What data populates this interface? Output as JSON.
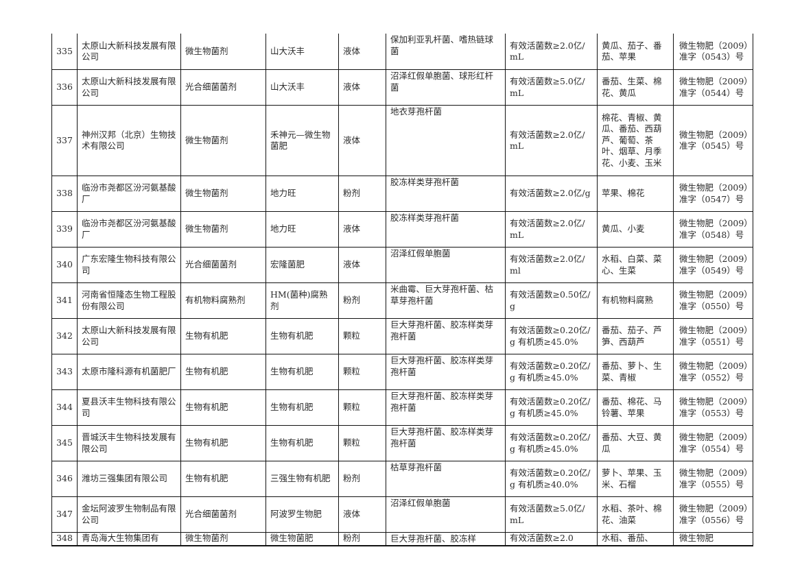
{
  "rows": [
    {
      "no": "335",
      "company": "太原山大新科技发展有限公司",
      "type": "微生物菌剂",
      "product": "山大沃丰",
      "form": "液体",
      "strain": "保加利亚乳杆菌、嗜热链球菌",
      "content": "有效活菌数≥2.0亿/mL",
      "crops": "黄瓜、茄子、番茄、苹果",
      "cert": "微生物肥（2009）准字（0543）号"
    },
    {
      "no": "336",
      "company": "太原山大新科技发展有限公司",
      "type": "光合细菌菌剂",
      "product": "山大沃丰",
      "form": "液体",
      "strain": "沼泽红假单胞菌、球形红杆菌",
      "content": "有效活菌数≥5.0亿/mL",
      "crops": "番茄、生菜、棉花、黄瓜",
      "cert": "微生物肥（2009）准字（0544）号"
    },
    {
      "no": "337",
      "company": "神州汉邦（北京）生物技术有限公司",
      "type": "微生物菌剂",
      "product": "禾神元—微生物菌肥",
      "form": "液体",
      "strain": "地衣芽孢杆菌",
      "content": "有效活菌数≥2.0亿/mL",
      "crops": "棉花、青椒、黄瓜、番茄、西葫芦、葡萄、茶叶、烟草、月季花、小麦、玉米",
      "cert": "微生物肥（2009）准字（0545）号"
    },
    {
      "no": "338",
      "company": "临汾市尧都区汾河氨基酸厂",
      "type": "微生物菌剂",
      "product": "地力旺",
      "form": "粉剂",
      "strain": "胶冻样类芽孢杆菌",
      "content": "有效活菌数≥2.0亿/g",
      "crops": "苹果、棉花",
      "cert": "微生物肥（2009）准字（0547）号"
    },
    {
      "no": "339",
      "company": "临汾市尧都区汾河氨基酸厂",
      "type": "微生物菌剂",
      "product": "地力旺",
      "form": "液体",
      "strain": "胶冻样类芽孢杆菌",
      "content": "有效活菌数≥2.0亿/mL",
      "crops": "黄瓜、小麦",
      "cert": "微生物肥（2009）准字（0548）号"
    },
    {
      "no": "340",
      "company": "广东宏隆生物科技有限公司",
      "type": "光合细菌菌剂",
      "product": "宏隆菌肥",
      "form": "液体",
      "strain": "沼泽红假单胞菌",
      "content": "有效活菌数≥2.0亿/ml",
      "crops": "水稻、白菜、菜心、生菜",
      "cert": "微生物肥（2009）准字（0549）号"
    },
    {
      "no": "341",
      "company": "河南省恒隆态生物工程股份有限公司",
      "type": "有机物料腐熟剂",
      "product": "HM(菌种)腐熟剂",
      "form": "粉剂",
      "strain": "米曲霉、巨大芽孢杆菌、枯草芽孢杆菌",
      "content": "有效活菌数≥0.50亿/g",
      "crops": "有机物料腐熟",
      "cert": "微生物肥（2009）准字（0550）号"
    },
    {
      "no": "342",
      "company": "太原山大新科技发展有限公司",
      "type": "生物有机肥",
      "product": "生物有机肥",
      "form": "颗粒",
      "strain": "巨大芽孢杆菌、胶冻样类芽孢杆菌",
      "content": "有效活菌数≥0.20亿/g 有机质≥45.0%",
      "crops": "番茄、茄子、芦笋、西葫芦",
      "cert": "微生物肥（2009）准字（0551）号"
    },
    {
      "no": "343",
      "company": "太原市隆科源有机菌肥厂",
      "type": "生物有机肥",
      "product": "生物有机肥",
      "form": "颗粒",
      "strain": "巨大芽孢杆菌、胶冻样类芽孢杆菌",
      "content": "有效活菌数≥0.20亿/g 有机质≥45.0%",
      "crops": "番茄、萝卜、生菜、青椒",
      "cert": "微生物肥（2009）准字（0552）号"
    },
    {
      "no": "344",
      "company": "夏县沃丰生物科技有限公司",
      "type": "生物有机肥",
      "product": "生物有机肥",
      "form": "颗粒",
      "strain": "巨大芽孢杆菌、胶冻样类芽孢杆菌",
      "content": "有效活菌数≥0.20亿/g 有机质≥45.0%",
      "crops": "番茄、棉花、马铃薯、苹果",
      "cert": "微生物肥（2009）准字（0553）号"
    },
    {
      "no": "345",
      "company": "晋城沃丰生物科技发展有限公司",
      "type": "生物有机肥",
      "product": "生物有机肥",
      "form": "颗粒",
      "strain": "巨大芽孢杆菌、胶冻样类芽孢杆菌",
      "content": "有效活菌数≥0.20亿/g 有机质≥45.0%",
      "crops": "番茄、大豆、黄瓜",
      "cert": "微生物肥（2009）准字（0554）号"
    },
    {
      "no": "346",
      "company": "潍坊三强集团有限公司",
      "type": "生物有机肥",
      "product": "三强生物有机肥",
      "form": "粉剂",
      "strain": "枯草芽孢杆菌",
      "content": "有效活菌数≥0.20亿/g 有机质≥40.0%",
      "crops": "萝卜、苹果、玉米、石榴",
      "cert": "微生物肥（2009）准字（0555）号"
    },
    {
      "no": "347",
      "company": "金坛阿波罗生物制品有限公司",
      "type": "光合细菌菌剂",
      "product": "阿波罗生物肥",
      "form": "液体",
      "strain": "沼泽红假单胞菌",
      "content": "有效活菌数≥5.0亿/mL",
      "crops": "水稻、茶叶、棉花、油菜",
      "cert": "微生物肥（2009）准字（0556）号"
    },
    {
      "no": "348",
      "company": "青岛海大生物集团有",
      "type": "微生物菌剂",
      "product": "微生物菌肥",
      "form": "粉剂",
      "strain": "巨大芽孢杆菌、胶冻样",
      "content": "有效活菌数≥2.0",
      "crops": "水稻、番茄、",
      "cert": "微生物肥"
    }
  ]
}
